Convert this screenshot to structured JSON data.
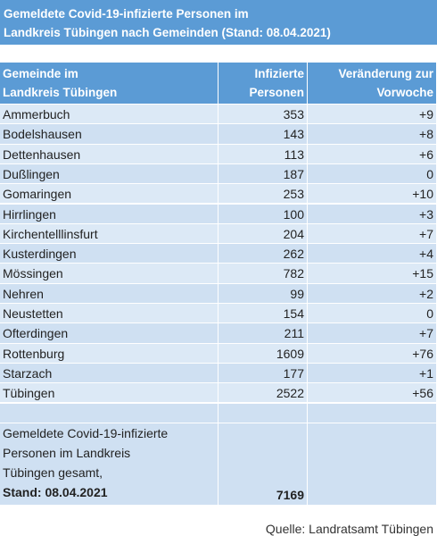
{
  "header": {
    "title_lines": [
      "Gemeldete Covid-19-infizierte Personen im",
      "Landkreis Tübingen nach Gemeinden (Stand: 08.04.2021)"
    ]
  },
  "table": {
    "columns": [
      [
        "Gemeinde im",
        "Landkreis Tübingen"
      ],
      [
        "Infizierte",
        "Personen"
      ],
      [
        "Veränderung zur",
        "Vorwoche"
      ]
    ],
    "rows": [
      [
        "Ammerbuch",
        "353",
        "+9"
      ],
      [
        "Bodelshausen",
        "143",
        "+8"
      ],
      [
        "Dettenhausen",
        "113",
        "+6"
      ],
      [
        "Dußlingen",
        "187",
        "0"
      ],
      [
        "Gomaringen",
        "253",
        "+10"
      ],
      [
        "Hirrlingen",
        "100",
        "+3"
      ],
      [
        "Kirchentelllinsfurt",
        "204",
        "+7"
      ],
      [
        "Kusterdingen",
        "262",
        "+4"
      ],
      [
        "Mössingen",
        "782",
        "+15"
      ],
      [
        "Nehren",
        "99",
        "+2"
      ],
      [
        "Neustetten",
        "154",
        "0"
      ],
      [
        "Ofterdingen",
        "211",
        "+7"
      ],
      [
        "Rottenburg",
        "1609",
        "+76"
      ],
      [
        "Starzach",
        "177",
        "+1"
      ],
      [
        "Tübingen",
        "2522",
        "+56"
      ]
    ],
    "total": {
      "label_lines": [
        "Gemeldete Covid-19-infizierte",
        "Personen im Landkreis",
        "Tübingen gesamt,"
      ],
      "stand": "Stand: 08.04.2021",
      "value": "7169"
    }
  },
  "footer": {
    "source": "Quelle: Landratsamt Tübingen"
  }
}
